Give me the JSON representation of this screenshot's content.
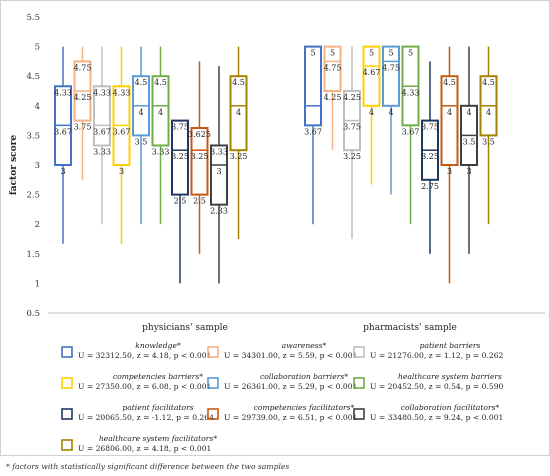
{
  "chart_data": {
    "type": "box",
    "ylabel": "factor score",
    "ylim": [
      0.5,
      5.5
    ],
    "yticks": [
      "0.5",
      "1",
      "1.5",
      "2",
      "2.5",
      "3",
      "3.5",
      "4",
      "4.5",
      "5",
      "5.5"
    ],
    "grid": false,
    "legend_position": "bottom",
    "groups": [
      "physicians' sample",
      "pharmacists' sample"
    ],
    "series": [
      {
        "name": "knowledge*",
        "stat": "U = 32312.50, z = 4.18, p < 0.001",
        "color": "#4472c4",
        "boxes": [
          {
            "min": 1.67,
            "q1": 3.0,
            "median": 3.67,
            "q3": 4.33,
            "max": 5.0,
            "labels": [
              "4.33",
              "3.67",
              "3"
            ]
          },
          {
            "min": 2.0,
            "q1": 3.67,
            "median": 4.0,
            "q3": 5.0,
            "max": 5.0,
            "labels": [
              "5",
              "3.67"
            ]
          }
        ]
      },
      {
        "name": "awareness*",
        "stat": "U = 34301.00, z = 5.59, p < 0.001",
        "color": "#f4b183",
        "boxes": [
          {
            "min": 2.75,
            "q1": 3.75,
            "median": 4.25,
            "q3": 4.75,
            "max": 5.0,
            "labels": [
              "4.75",
              "4.25",
              "3.75"
            ]
          },
          {
            "min": 3.25,
            "q1": 4.25,
            "median": 4.75,
            "q3": 5.0,
            "max": 5.0,
            "labels": [
              "5",
              "4.75",
              "4.25"
            ]
          }
        ]
      },
      {
        "name": "patient barriers",
        "stat": "U = 21276.00, z = 1.12, p = 0.262",
        "color": "#bfbfbf",
        "boxes": [
          {
            "min": 2.0,
            "q1": 3.33,
            "median": 3.67,
            "q3": 4.33,
            "max": 5.0,
            "labels": [
              "4.33",
              "3.67",
              "3.33"
            ]
          },
          {
            "min": 1.75,
            "q1": 3.25,
            "median": 3.75,
            "q3": 4.25,
            "max": 5.0,
            "labels": [
              "4.25",
              "3.75",
              "3.25"
            ]
          }
        ]
      },
      {
        "name": "competencies barriers*",
        "stat": "U = 27350.00, z = 6.08, p < 0.001",
        "color": "#ffd000",
        "boxes": [
          {
            "min": 1.67,
            "q1": 3.0,
            "median": 3.67,
            "q3": 4.33,
            "max": 5.0,
            "labels": [
              "4.33",
              "3.67",
              "3"
            ]
          },
          {
            "min": 2.67,
            "q1": 4.0,
            "median": 4.67,
            "q3": 5.0,
            "max": 5.0,
            "labels": [
              "5",
              "4.67",
              "4"
            ]
          }
        ]
      },
      {
        "name": "collaboration barriers*",
        "stat": "U = 26361.00, z = 5.29, p < 0.001",
        "color": "#5b9bd5",
        "boxes": [
          {
            "min": 2.0,
            "q1": 3.5,
            "median": 4.0,
            "q3": 4.5,
            "max": 5.0,
            "labels": [
              "4.5",
              "4",
              "3.5"
            ]
          },
          {
            "min": 2.5,
            "q1": 4.0,
            "median": 4.75,
            "q3": 5.0,
            "max": 5.0,
            "labels": [
              "5",
              "4.75",
              "4"
            ]
          }
        ]
      },
      {
        "name": "healthcare system barriers",
        "stat": "U = 20452.50, z = 0.54, p = 0.590",
        "color": "#70ad47",
        "boxes": [
          {
            "min": 2.0,
            "q1": 3.33,
            "median": 4.0,
            "q3": 4.5,
            "max": 5.0,
            "labels": [
              "4.5",
              "4",
              "3.33"
            ]
          },
          {
            "min": 2.0,
            "q1": 3.67,
            "median": 4.33,
            "q3": 5.0,
            "max": 5.0,
            "labels": [
              "5",
              "4.33",
              "3.67"
            ]
          }
        ]
      },
      {
        "name": "patient facilitators",
        "stat": "U = 20065.50, z = -1.12, p = 0.264",
        "color": "#1f3864",
        "boxes": [
          {
            "min": 1.0,
            "q1": 2.5,
            "median": 3.25,
            "q3": 3.75,
            "max": 3.75,
            "labels": [
              "3.75",
              "3.25",
              "2.5"
            ]
          },
          {
            "min": 1.5,
            "q1": 2.75,
            "median": 3.25,
            "q3": 3.75,
            "max": 4.75,
            "labels": [
              "3.75",
              "3.25",
              "2.75"
            ]
          }
        ]
      },
      {
        "name": "competencies facilitators*",
        "stat": "U = 29739.00, z = 6.51, p < 0.001",
        "color": "#c55a11",
        "boxes": [
          {
            "min": 1.5,
            "q1": 2.5,
            "median": 3.25,
            "q3": 3.625,
            "max": 4.75,
            "labels": [
              "3.625",
              "3.25",
              "2.5"
            ]
          },
          {
            "min": 1.0,
            "q1": 3.0,
            "median": 4.0,
            "q3": 4.5,
            "max": 5.0,
            "labels": [
              "4.5",
              "4",
              "3"
            ]
          }
        ]
      },
      {
        "name": "collaboration facilitators*",
        "stat": "U = 33480.50, z = 9.24, p < 0.001",
        "color": "#404040",
        "boxes": [
          {
            "min": 1.0,
            "q1": 2.33,
            "median": 3.0,
            "q3": 3.33,
            "max": 4.67,
            "labels": [
              "3.33",
              "3",
              "2.33"
            ]
          },
          {
            "min": 1.5,
            "q1": 3.0,
            "median": 3.5,
            "q3": 4.0,
            "max": 5.0,
            "labels": [
              "4",
              "3.5",
              "3"
            ]
          }
        ]
      },
      {
        "name": "healthcare system facilitators*",
        "stat": "U = 26806.00, z = 4.18, p < 0.001",
        "color": "#a68200",
        "boxes": [
          {
            "min": 1.75,
            "q1": 3.25,
            "median": 4.0,
            "q3": 4.5,
            "max": 5.0,
            "labels": [
              "4.5",
              "4",
              "3.25"
            ]
          },
          {
            "min": 2.0,
            "q1": 3.5,
            "median": 4.0,
            "q3": 4.5,
            "max": 5.0,
            "labels": [
              "4.5",
              "4",
              "3.5"
            ]
          }
        ]
      }
    ],
    "footnote": "* factors with statistically significant difference between the two samples"
  }
}
